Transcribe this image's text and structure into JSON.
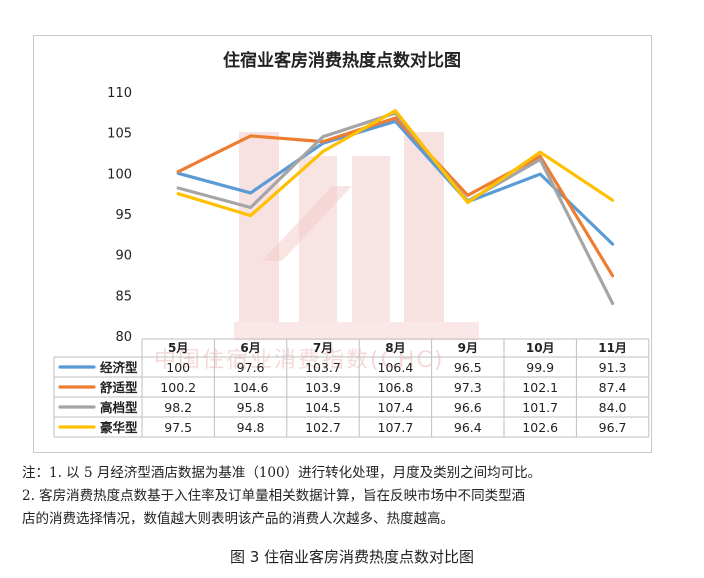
{
  "chart_data": {
    "type": "line",
    "title": "住宿业客房消费热度点数对比图",
    "categories": [
      "5月",
      "6月",
      "7月",
      "8月",
      "9月",
      "10月",
      "11月"
    ],
    "ylim": [
      80,
      110
    ],
    "yticks": [
      "80",
      "85",
      "90",
      "95",
      "100",
      "105",
      "110"
    ],
    "grid": false,
    "legend": "data-table-left",
    "series": [
      {
        "name": "经济型",
        "color": "#5b9bd5",
        "values": [
          100,
          97.6,
          103.7,
          106.4,
          96.5,
          99.9,
          91.3
        ],
        "labels": [
          "100",
          "97.6",
          "103.7",
          "106.4",
          "96.5",
          "99.9",
          "91.3"
        ]
      },
      {
        "name": "舒适型",
        "color": "#ed7d31",
        "values": [
          100.2,
          104.6,
          103.9,
          106.8,
          97.3,
          102.1,
          87.4
        ],
        "labels": [
          "100.2",
          "104.6",
          "103.9",
          "106.8",
          "97.3",
          "102.1",
          "87.4"
        ]
      },
      {
        "name": "高档型",
        "color": "#a5a5a5",
        "values": [
          98.2,
          95.8,
          104.5,
          107.4,
          96.6,
          101.7,
          84.0
        ],
        "labels": [
          "98.2",
          "95.8",
          "104.5",
          "107.4",
          "96.6",
          "101.7",
          "84.0"
        ]
      },
      {
        "name": "豪华型",
        "color": "#ffc000",
        "values": [
          97.5,
          94.8,
          102.7,
          107.7,
          96.4,
          102.6,
          96.7
        ],
        "labels": [
          "97.5",
          "94.8",
          "102.7",
          "107.7",
          "96.4",
          "102.6",
          "96.7"
        ]
      }
    ]
  },
  "watermark": {
    "logo": "CHA",
    "text": "中国住宿业消费指数(CHC)"
  },
  "notes": {
    "line1": "注：1. 以 5 月经济型酒店数据为基准（100）进行转化处理，月度及类别之间均可比。",
    "line2": "2. 客房消费热度点数基于入住率及订单量相关数据计算，旨在反映市场中不同类型酒",
    "line3": "店的消费选择情况，数值越大则表明该产品的消费人次越多、热度越高。"
  },
  "caption": "图 3 住宿业客房消费热度点数对比图"
}
